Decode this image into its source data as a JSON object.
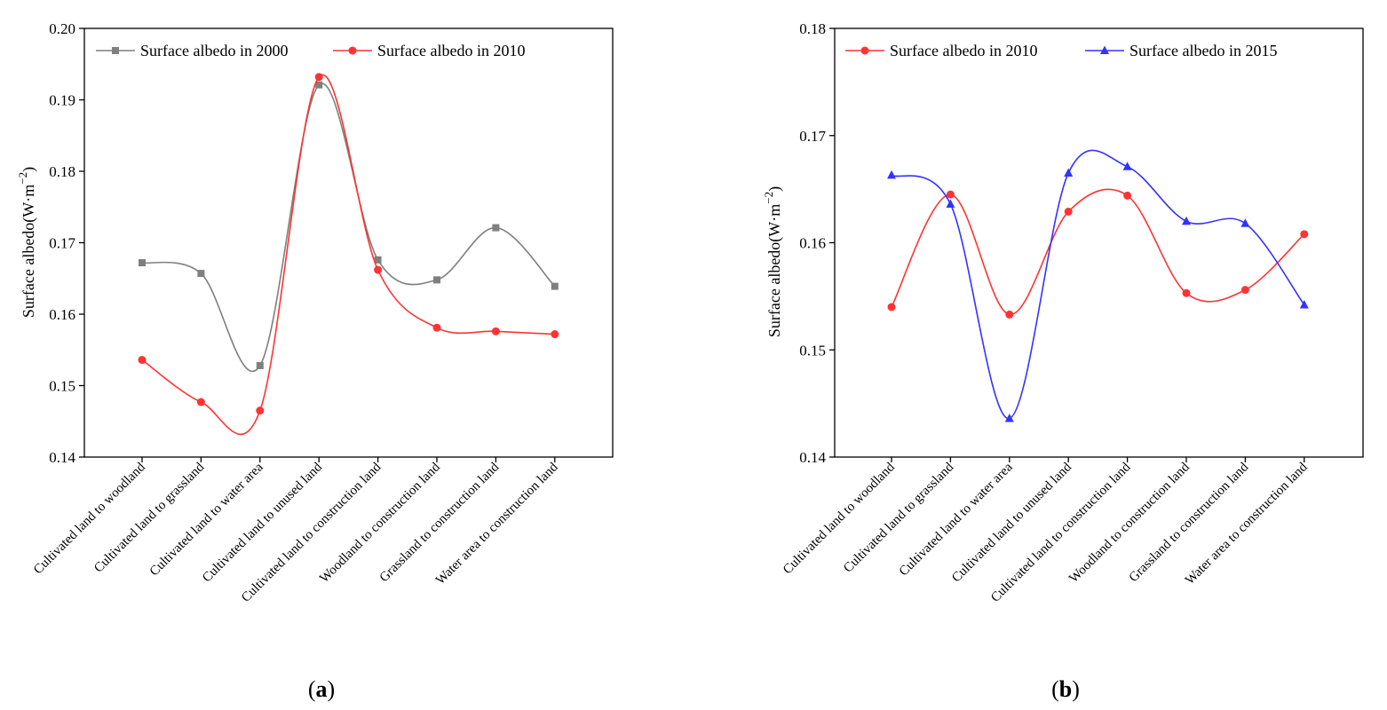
{
  "chart_data": [
    {
      "type": "line",
      "panel_label": "a",
      "categories": [
        "Cultivated land to woodland",
        "Cultivated land to grassland",
        "Cultivated land to water area",
        "Cultivated land to unused land",
        "Cultivated land to construction land",
        "Woodland to construction land",
        "Grassland to construction land",
        "Water area to construction land"
      ],
      "series": [
        {
          "name": "Surface albedo in 2000",
          "color": "#7f7f7f",
          "marker": "square",
          "values": [
            0.1672,
            0.1657,
            0.1528,
            0.1921,
            0.1676,
            0.1648,
            0.1721,
            0.1639
          ]
        },
        {
          "name": "Surface albedo in 2010",
          "color": "#ff3333",
          "marker": "circle",
          "values": [
            0.1536,
            0.1477,
            0.1465,
            0.1932,
            0.1662,
            0.1581,
            0.1576,
            0.1572
          ]
        }
      ],
      "ylabel": "Surface albedo(W·m",
      "ylabel_exp": "−2",
      "ylabel_close": ")",
      "ylim": [
        0.14,
        0.2
      ],
      "yticks": [
        "0.14",
        "0.15",
        "0.16",
        "0.17",
        "0.18",
        "0.19",
        "0.20"
      ],
      "legend_position": "top"
    },
    {
      "type": "line",
      "panel_label": "b",
      "categories": [
        "Cultivated land to woodland",
        "Cultivated land to grassland",
        "Cultivated land to water area",
        "Cultivated land to unused land",
        "Cultivated land to construction land",
        "Woodland to construction land",
        "Grassland to construction land",
        "Water area to construction land"
      ],
      "series": [
        {
          "name": "Surface albedo in 2010",
          "color": "#ff3333",
          "marker": "circle",
          "values": [
            0.154,
            0.1645,
            0.1533,
            0.1629,
            0.1644,
            0.1553,
            0.1556,
            0.1608
          ]
        },
        {
          "name": "Surface albedo in 2015",
          "color": "#3333ff",
          "marker": "triangle",
          "values": [
            0.1663,
            0.1636,
            0.1436,
            0.1665,
            0.1671,
            0.162,
            0.1618,
            0.1542
          ]
        }
      ],
      "ylabel": "Surface albedo(W·m",
      "ylabel_exp": "−2",
      "ylabel_close": ")",
      "ylim": [
        0.14,
        0.18
      ],
      "yticks": [
        "0.14",
        "0.15",
        "0.16",
        "0.17",
        "0.18"
      ],
      "legend_position": "top"
    }
  ]
}
